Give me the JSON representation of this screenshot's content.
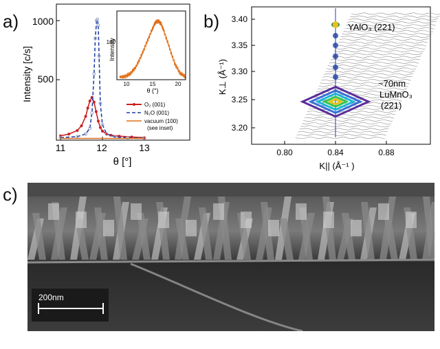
{
  "panel_a": {
    "letter": "a)",
    "ylabel": "Intensity [c/s]",
    "xlabel": "θ [°]",
    "yticks": [
      "1000",
      "500"
    ],
    "xticks": [
      "11",
      "12",
      "13"
    ],
    "legend": [
      {
        "label": "O₂ (001)",
        "color": "#cc1f1f"
      },
      {
        "label": "N₂O (001)",
        "color": "#1f3fa8"
      },
      {
        "label": "vacuum (100)",
        "color": "#e0701a"
      },
      {
        "label": "(see inset)",
        "color": "#e0701a"
      }
    ],
    "inset": {
      "ylabel": "Intensity",
      "xlabel": "θ (°)",
      "xticks": [
        "10",
        "15",
        "20"
      ],
      "yticks": [
        "100"
      ]
    }
  },
  "panel_b": {
    "letter": "b)",
    "ylabel": "K⊥ (Å⁻¹)",
    "xlabel": "K|| (Å⁻¹ )",
    "yticks": [
      "3.40",
      "3.35",
      "3.30",
      "3.25",
      "3.20"
    ],
    "xticks": [
      "0.80",
      "0.84",
      "0.88"
    ],
    "annotations": [
      "YAlO₃ (221)",
      "~70nm",
      "LuMnO₃",
      "(221)"
    ]
  },
  "panel_c": {
    "letter": "c)",
    "scale_label": "200nm"
  },
  "chart_data": [
    {
      "type": "line",
      "title": "",
      "xlabel": "θ [°]",
      "ylabel": "Intensity [c/s]",
      "xlim": [
        11,
        13.3
      ],
      "ylim": [
        0,
        1080
      ],
      "series": [
        {
          "name": "O₂ (001)",
          "x": [
            11.0,
            11.2,
            11.4,
            11.5,
            11.6,
            11.65,
            11.7,
            11.75,
            11.8,
            11.85,
            11.9,
            11.95,
            12.0,
            12.1,
            12.2,
            12.4,
            12.7,
            13.0
          ],
          "y": [
            25,
            40,
            70,
            110,
            190,
            260,
            320,
            350,
            310,
            230,
            150,
            95,
            65,
            40,
            30,
            22,
            15,
            10
          ]
        },
        {
          "name": "N₂O (001)",
          "x": [
            11.0,
            11.4,
            11.6,
            11.7,
            11.75,
            11.8,
            11.83,
            11.86,
            11.88,
            11.9,
            11.92,
            11.95,
            12.0,
            12.1,
            12.3,
            12.6,
            13.0
          ],
          "y": [
            10,
            18,
            40,
            90,
            220,
            550,
            850,
            1000,
            1010,
            960,
            700,
            300,
            120,
            40,
            15,
            8,
            5
          ]
        },
        {
          "name": "vacuum (100)",
          "x": [
            11.0,
            12.0,
            13.0
          ],
          "y": [
            3,
            3,
            3
          ]
        }
      ]
    },
    {
      "type": "line",
      "title": "",
      "xlabel": "θ (°)",
      "ylabel": "Intensity",
      "xlim": [
        8.5,
        21
      ],
      "ylim": [
        0,
        190
      ],
      "series": [
        {
          "name": "vacuum (100)",
          "x": [
            9,
            10,
            11,
            12,
            13,
            14,
            15,
            15.5,
            16,
            16.5,
            17,
            18,
            19,
            20,
            21
          ],
          "y": [
            2,
            5,
            15,
            35,
            70,
            110,
            150,
            168,
            172,
            165,
            145,
            95,
            45,
            15,
            5
          ]
        }
      ]
    }
  ]
}
